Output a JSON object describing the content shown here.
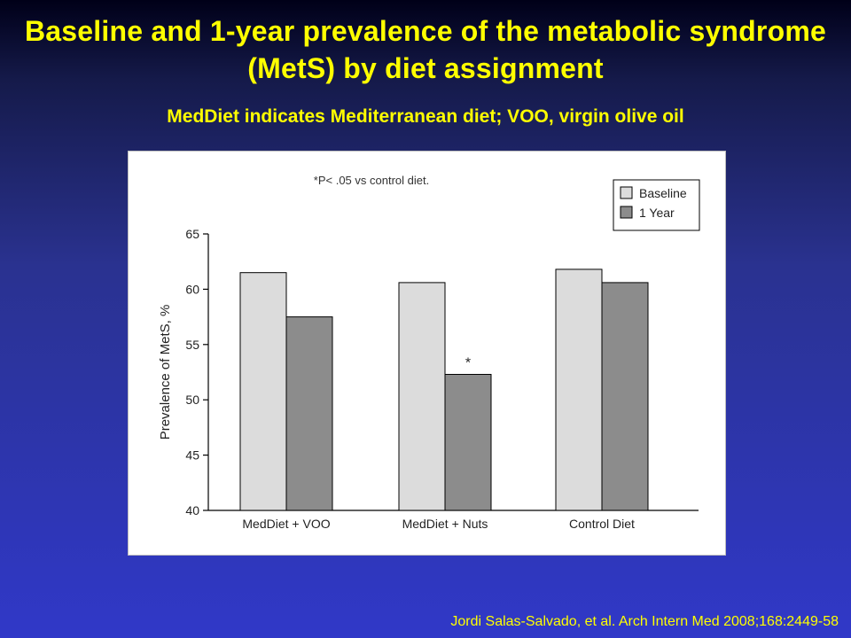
{
  "slide": {
    "title": "Baseline and 1-year prevalence of the metabolic syndrome (MetS) by diet assignment",
    "subtitle": "MedDiet indicates Mediterranean diet; VOO, virgin olive oil",
    "citation": "Jordi Salas-Salvado, et al. Arch Intern Med 2008;168:2449-58"
  },
  "chart_data": {
    "type": "bar",
    "categories": [
      "MedDiet + VOO",
      "MedDiet + Nuts",
      "Control Diet"
    ],
    "series": [
      {
        "name": "Baseline",
        "values": [
          61.5,
          60.6,
          61.8
        ],
        "color": "#dcdcdc"
      },
      {
        "name": "1 Year",
        "values": [
          57.5,
          52.3,
          60.6
        ],
        "color": "#8c8c8c"
      }
    ],
    "ylabel": "Prevalence of MetS, %",
    "ylim": [
      40,
      65
    ],
    "yticks": [
      40,
      45,
      50,
      55,
      60,
      65
    ],
    "annotation": "*P< .05 vs control diet.",
    "significance": [
      {
        "category": "MedDiet + Nuts",
        "series": "1 Year",
        "marker": "*"
      }
    ],
    "legend_position": "top-right",
    "grid": false
  }
}
